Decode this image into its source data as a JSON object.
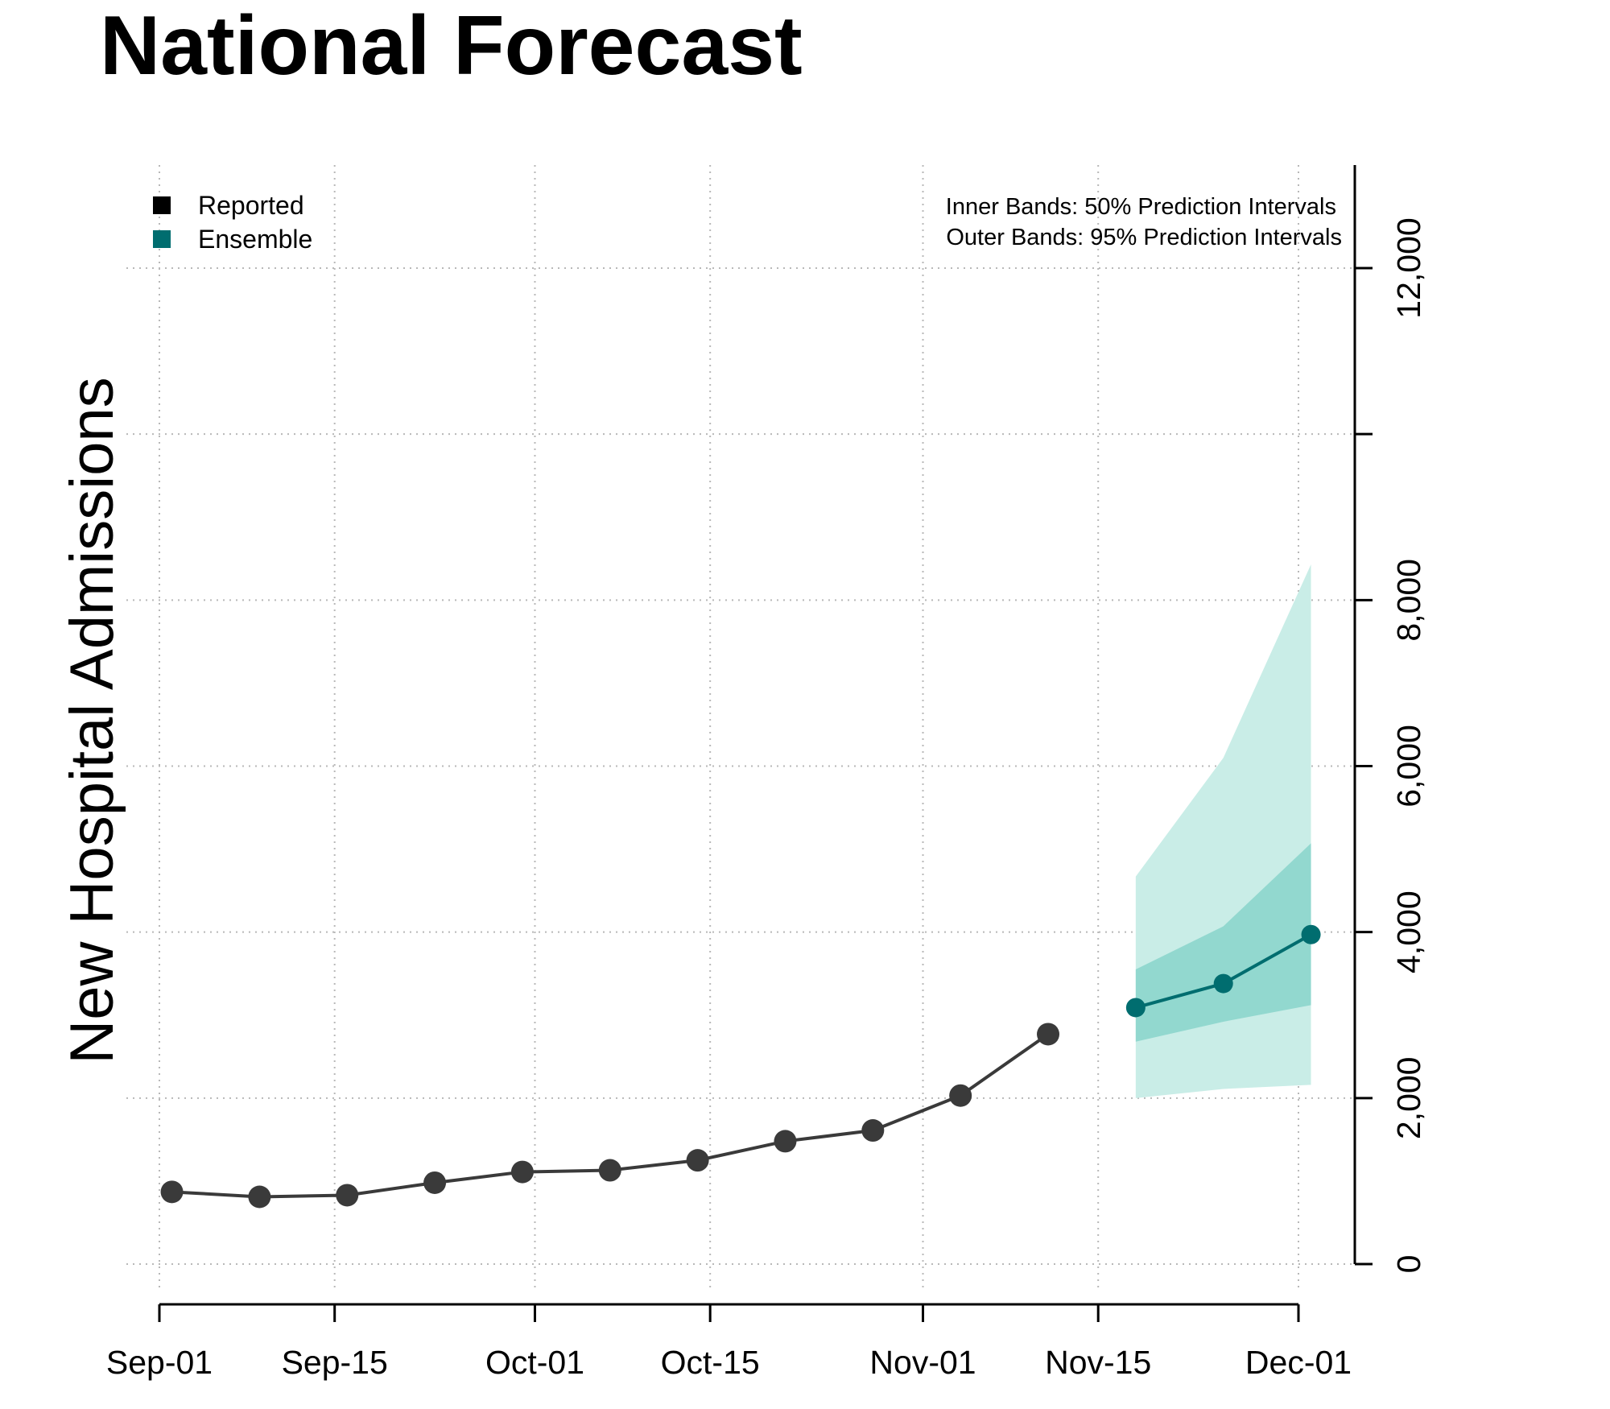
{
  "chart_data": {
    "type": "line",
    "title": "National Forecast",
    "xlabel": "",
    "ylabel": "New Hospital Admissions",
    "x_ticks": [
      "Sep-01",
      "Sep-15",
      "Oct-01",
      "Oct-15",
      "Nov-01",
      "Nov-15",
      "Dec-01"
    ],
    "y_ticks": [
      "0",
      "2,000",
      "4,000",
      "6,000",
      "8,000",
      "12,000"
    ],
    "ylim": [
      0,
      12000
    ],
    "grid": true,
    "y_axis_side": "right",
    "legend": {
      "placement": "top-left",
      "entries": [
        {
          "label": "Reported",
          "color": "#000000"
        },
        {
          "label": "Ensemble",
          "color": "#006d6f"
        }
      ]
    },
    "annotations": [
      "Inner Bands: 50% Prediction Intervals",
      "Outer Bands: 95% Prediction Intervals"
    ],
    "series": [
      {
        "name": "Reported",
        "color": "#3a3a3a",
        "points": [
          {
            "x": "Sep-02",
            "y": 870
          },
          {
            "x": "Sep-09",
            "y": 810
          },
          {
            "x": "Sep-16",
            "y": 830
          },
          {
            "x": "Sep-23",
            "y": 980
          },
          {
            "x": "Sep-30",
            "y": 1110
          },
          {
            "x": "Oct-07",
            "y": 1130
          },
          {
            "x": "Oct-14",
            "y": 1250
          },
          {
            "x": "Oct-21",
            "y": 1480
          },
          {
            "x": "Oct-28",
            "y": 1610
          },
          {
            "x": "Nov-04",
            "y": 2030
          },
          {
            "x": "Nov-11",
            "y": 2770
          }
        ]
      },
      {
        "name": "Ensemble",
        "color": "#006d6f",
        "points": [
          {
            "x": "Nov-18",
            "y": 3090,
            "lower50": 2680,
            "upper50": 3550,
            "lower95": 2000,
            "upper95": 4670
          },
          {
            "x": "Nov-25",
            "y": 3380,
            "lower50": 2920,
            "upper50": 4070,
            "lower95": 2110,
            "upper95": 6100
          },
          {
            "x": "Dec-02",
            "y": 3970,
            "lower50": 3120,
            "upper50": 5070,
            "lower95": 2160,
            "upper95": 8430
          }
        ]
      }
    ],
    "band_colors": {
      "inner": "#92d8cf",
      "outer": "#c9ede7"
    }
  }
}
